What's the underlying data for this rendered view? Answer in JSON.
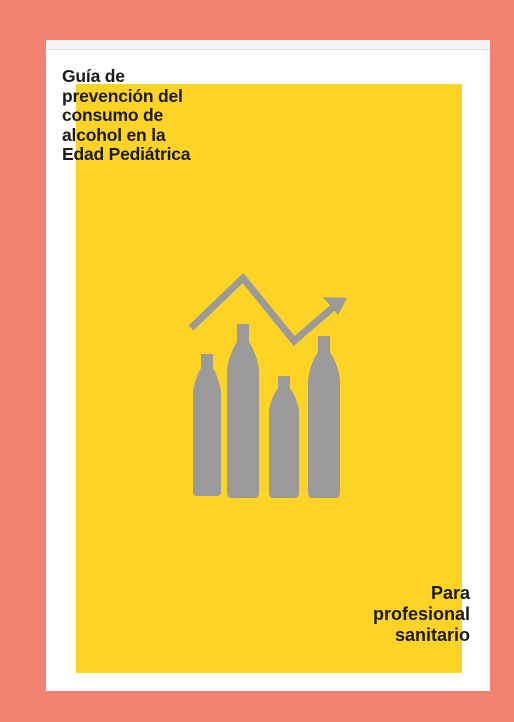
{
  "cover": {
    "title_lines": [
      "Guía de",
      "prevención del",
      "consumo de",
      "alcohol en la",
      "Edad Pediátrica"
    ],
    "audience_lines": [
      "Para",
      "profesional",
      "sanitario"
    ],
    "illustration": {
      "icon": "rising-alcohol-bottles-chart-icon",
      "color": "#9a9a9a"
    },
    "colors": {
      "background": "#f0836f",
      "cover_accent": "#fdd326",
      "text": "#1a1a1a"
    }
  }
}
